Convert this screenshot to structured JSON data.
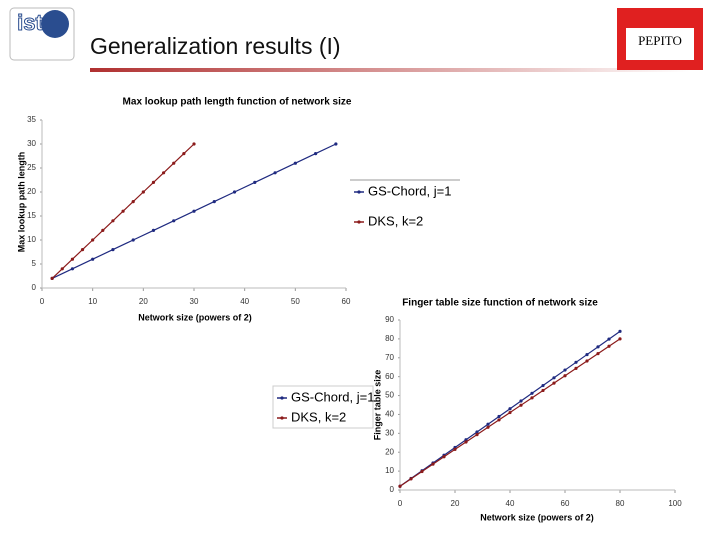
{
  "header": {
    "logo": "ist",
    "title": "Generalization results (I)",
    "brand": "PEPITO"
  },
  "chart_data": [
    {
      "type": "line",
      "title": "Max lookup path length function of network size",
      "x_label": "Network size (powers of 2)",
      "y_label": "Max lookup path length",
      "xlim": [
        0,
        60
      ],
      "xticks": [
        0,
        10,
        20,
        30,
        40,
        50,
        60
      ],
      "ylim": [
        0,
        35
      ],
      "yticks": [
        0,
        5,
        10,
        15,
        20,
        25,
        30,
        35
      ],
      "series": [
        {
          "name": "GS-Chord, j=1",
          "color": "#1f2a80",
          "x": [
            2,
            6,
            10,
            14,
            18,
            22,
            26,
            30,
            34,
            38,
            42,
            46,
            50,
            54,
            58
          ],
          "values": [
            2,
            4,
            6,
            8,
            10,
            12,
            14,
            16,
            18,
            20,
            22,
            24,
            26,
            28,
            30
          ]
        },
        {
          "name": "DKS, k=2",
          "color": "#8b1a1a",
          "x": [
            2,
            4,
            6,
            8,
            10,
            12,
            14,
            16,
            18,
            20,
            22,
            24,
            26,
            28,
            30
          ],
          "values": [
            2,
            4,
            6,
            8,
            10,
            12,
            14,
            16,
            18,
            20,
            22,
            24,
            26,
            28,
            30
          ]
        }
      ]
    },
    {
      "type": "line",
      "title": "Finger table size function of network size",
      "x_label": "Network size (powers of 2)",
      "y_label": "Finger table size",
      "xlim": [
        0,
        100
      ],
      "xticks": [
        0,
        20,
        40,
        60,
        80,
        100
      ],
      "ylim": [
        0,
        90
      ],
      "yticks": [
        0,
        10,
        20,
        30,
        40,
        50,
        60,
        70,
        80,
        90
      ],
      "series": [
        {
          "name": "GS-Chord, j=1",
          "color": "#1f2a80",
          "x": [
            0,
            4,
            8,
            12,
            16,
            20,
            24,
            28,
            32,
            36,
            40,
            44,
            48,
            52,
            56,
            60,
            64,
            68,
            72,
            76,
            80
          ],
          "values": [
            2,
            6.1,
            10.2,
            14.3,
            18.4,
            22.5,
            26.6,
            30.7,
            34.8,
            38.9,
            43,
            47.1,
            51.2,
            55.3,
            59.4,
            63.5,
            67.6,
            71.7,
            75.8,
            79.9,
            84
          ]
        },
        {
          "name": "DKS, k=2",
          "color": "#8b1a1a",
          "x": [
            0,
            4,
            8,
            12,
            16,
            20,
            24,
            28,
            32,
            36,
            40,
            44,
            48,
            52,
            56,
            60,
            64,
            68,
            72,
            76,
            80
          ],
          "values": [
            2,
            5.9,
            9.8,
            13.7,
            17.6,
            21.5,
            25.4,
            29.3,
            33.2,
            37.1,
            41,
            44.9,
            48.8,
            52.7,
            56.6,
            60.5,
            64.4,
            68.3,
            72.2,
            76.1,
            80
          ]
        }
      ]
    }
  ]
}
